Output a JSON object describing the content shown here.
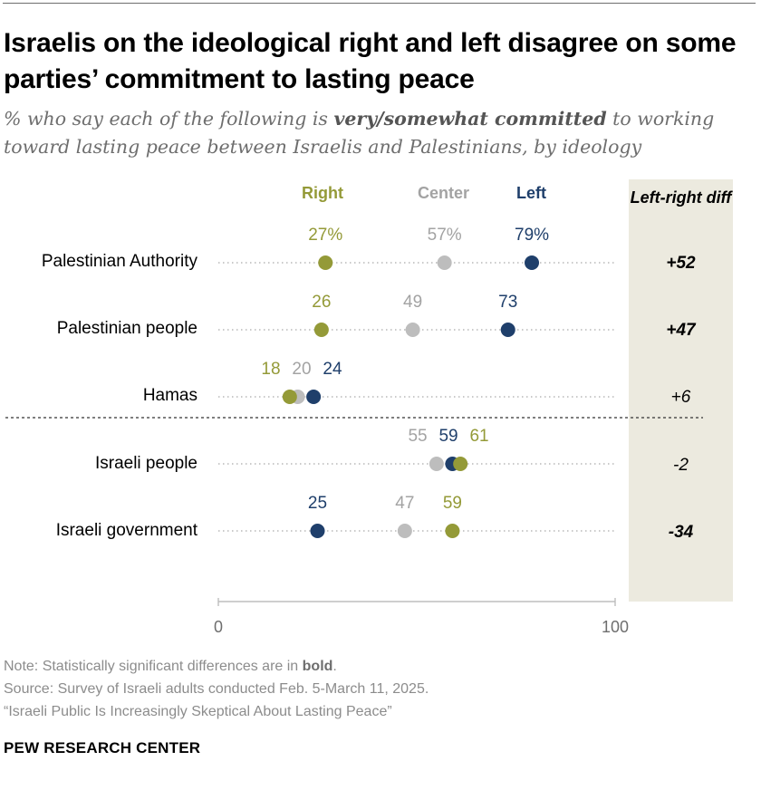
{
  "title": "Israelis on the ideological right and left disagree on some parties’ commitment to lasting peace",
  "subtitle": {
    "pre": "% who say each of the following is ",
    "emphasis": "very/somewhat committed",
    "post": " to working toward lasting peace between Israelis and Palestinians, by ideology"
  },
  "legend": {
    "right": "Right",
    "center": "Center",
    "left": "Left"
  },
  "diff_header": "Left-right diff",
  "colors": {
    "right": "#949a38",
    "center": "#bdbdbd",
    "left": "#1f3f6b",
    "panel": "#eceadf",
    "dots": "#b8b8b8"
  },
  "chart_data": {
    "type": "dot",
    "title": "Israelis on the ideological right and left disagree on some parties’ commitment to lasting peace",
    "categories": [
      "Palestinian Authority",
      "Palestinian people",
      "Hamas",
      "Israeli people",
      "Israeli government"
    ],
    "series": [
      {
        "name": "Right",
        "values": [
          27,
          26,
          18,
          61,
          59
        ]
      },
      {
        "name": "Center",
        "values": [
          57,
          49,
          20,
          55,
          47
        ]
      },
      {
        "name": "Left",
        "values": [
          79,
          73,
          24,
          59,
          25
        ]
      }
    ],
    "value_labels": [
      {
        "Right": "27%",
        "Center": "57%",
        "Left": "79%"
      },
      {
        "Right": "26",
        "Center": "49",
        "Left": "73"
      },
      {
        "Right": "18",
        "Center": "20",
        "Left": "24"
      },
      {
        "Right": "61",
        "Center": "55",
        "Left": "59"
      },
      {
        "Right": "59",
        "Center": "47",
        "Left": "25"
      }
    ],
    "diffs": [
      "+52",
      "+47",
      "+6",
      "-2",
      "-34"
    ],
    "diff_significant": [
      true,
      true,
      false,
      false,
      true
    ],
    "xlim": [
      0,
      100
    ],
    "xticks": [
      "0",
      "100"
    ],
    "xlabel": "",
    "ylabel": ""
  },
  "notes": {
    "note_pre": "Note: Statistically significant differences are in ",
    "note_bold": "bold",
    "note_post": ".",
    "source": "Source: Survey of Israeli adults conducted Feb. 5-March 11, 2025.",
    "report": "“Israeli Public Is Increasingly Skeptical About Lasting Peace”"
  },
  "brand": "PEW RESEARCH CENTER"
}
